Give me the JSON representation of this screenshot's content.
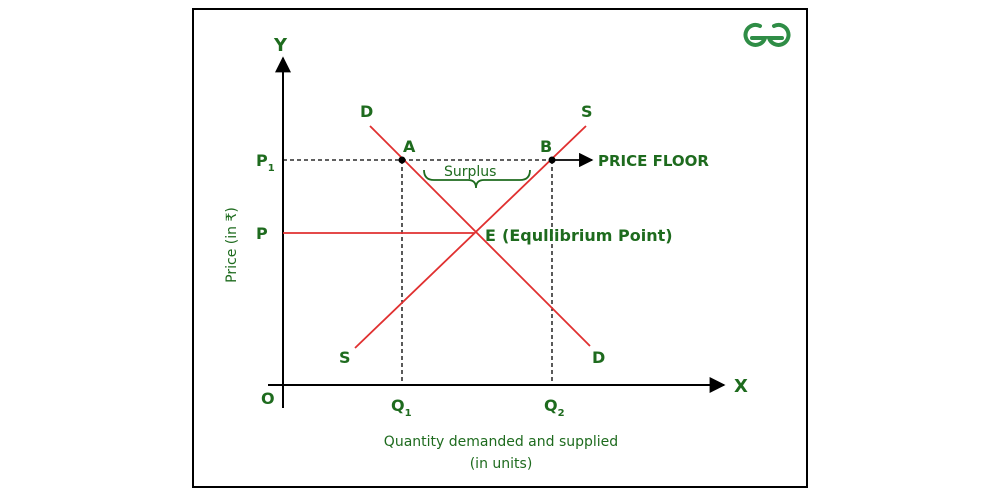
{
  "axes": {
    "y_letter": "Y",
    "x_letter": "X",
    "origin": "O",
    "y_label": "Price (in ₹)",
    "x_label_line1": "Quantity demanded and supplied",
    "x_label_line2": "(in units)"
  },
  "price_labels": {
    "p1_main": "P",
    "p1_sub": "1",
    "p": "P"
  },
  "quantity_labels": {
    "q1_main": "Q",
    "q1_sub": "1",
    "q2_main": "Q",
    "q2_sub": "2"
  },
  "curves": {
    "demand_top": "D",
    "demand_bottom": "D",
    "supply_top": "S",
    "supply_bottom": "S"
  },
  "points": {
    "a": "A",
    "b": "B",
    "e": "E",
    "equilibrium_text": "(Equllibrium Point)"
  },
  "annotations": {
    "price_floor": "PRICE FLOOR",
    "surplus": "Surplus"
  },
  "colors": {
    "axis": "#000000",
    "curve": "#e03030",
    "label": "#1e6b1e",
    "logo": "#2f8d46"
  },
  "logo": "geeksforgeeks-logo"
}
